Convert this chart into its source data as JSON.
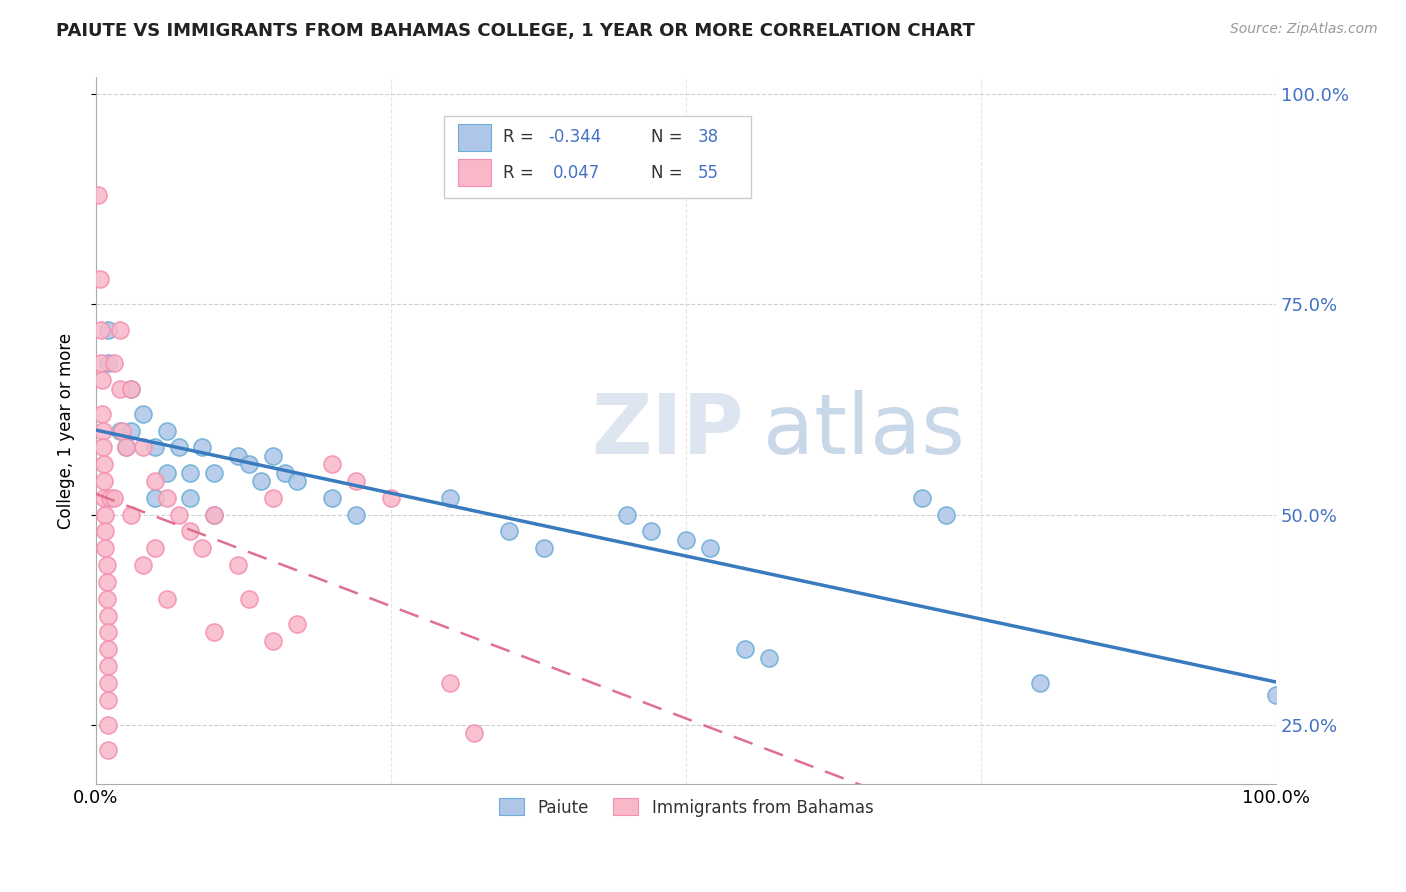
{
  "title": "PAIUTE VS IMMIGRANTS FROM BAHAMAS COLLEGE, 1 YEAR OR MORE CORRELATION CHART",
  "source": "Source: ZipAtlas.com",
  "ylabel": "College, 1 year or more",
  "legend_label_blue": "Paiute",
  "legend_label_pink": "Immigrants from Bahamas",
  "watermark_zip": "ZIP",
  "watermark_atlas": "atlas",
  "blue_color": "#aec6e8",
  "blue_edge_color": "#6baed6",
  "pink_color": "#f9b8c8",
  "pink_edge_color": "#f48fb1",
  "blue_line_color": "#3a7abf",
  "pink_line_color": "#e07090",
  "legend_r_color": "#4472c4",
  "legend_text_color": "#333333",
  "blue_r": "-0.344",
  "blue_n": "38",
  "pink_r": "0.047",
  "pink_n": "55",
  "blue_scatter": [
    [
      0.01,
      0.72
    ],
    [
      0.01,
      0.68
    ],
    [
      0.02,
      0.6
    ],
    [
      0.025,
      0.58
    ],
    [
      0.03,
      0.65
    ],
    [
      0.03,
      0.6
    ],
    [
      0.04,
      0.62
    ],
    [
      0.05,
      0.58
    ],
    [
      0.05,
      0.52
    ],
    [
      0.06,
      0.6
    ],
    [
      0.06,
      0.55
    ],
    [
      0.07,
      0.58
    ],
    [
      0.08,
      0.55
    ],
    [
      0.08,
      0.52
    ],
    [
      0.09,
      0.58
    ],
    [
      0.1,
      0.55
    ],
    [
      0.1,
      0.5
    ],
    [
      0.12,
      0.57
    ],
    [
      0.13,
      0.56
    ],
    [
      0.14,
      0.54
    ],
    [
      0.15,
      0.57
    ],
    [
      0.16,
      0.55
    ],
    [
      0.17,
      0.54
    ],
    [
      0.2,
      0.52
    ],
    [
      0.22,
      0.5
    ],
    [
      0.3,
      0.52
    ],
    [
      0.35,
      0.48
    ],
    [
      0.38,
      0.46
    ],
    [
      0.45,
      0.5
    ],
    [
      0.47,
      0.48
    ],
    [
      0.5,
      0.47
    ],
    [
      0.52,
      0.46
    ],
    [
      0.55,
      0.34
    ],
    [
      0.57,
      0.33
    ],
    [
      0.7,
      0.52
    ],
    [
      0.72,
      0.5
    ],
    [
      0.8,
      0.3
    ],
    [
      1.0,
      0.285
    ]
  ],
  "pink_scatter": [
    [
      0.002,
      0.88
    ],
    [
      0.003,
      0.78
    ],
    [
      0.004,
      0.72
    ],
    [
      0.004,
      0.68
    ],
    [
      0.005,
      0.66
    ],
    [
      0.005,
      0.62
    ],
    [
      0.006,
      0.6
    ],
    [
      0.006,
      0.58
    ],
    [
      0.007,
      0.56
    ],
    [
      0.007,
      0.54
    ],
    [
      0.007,
      0.52
    ],
    [
      0.008,
      0.5
    ],
    [
      0.008,
      0.48
    ],
    [
      0.008,
      0.46
    ],
    [
      0.009,
      0.44
    ],
    [
      0.009,
      0.42
    ],
    [
      0.009,
      0.4
    ],
    [
      0.01,
      0.38
    ],
    [
      0.01,
      0.36
    ],
    [
      0.01,
      0.34
    ],
    [
      0.01,
      0.32
    ],
    [
      0.01,
      0.3
    ],
    [
      0.01,
      0.28
    ],
    [
      0.01,
      0.25
    ],
    [
      0.01,
      0.22
    ],
    [
      0.012,
      0.52
    ],
    [
      0.015,
      0.68
    ],
    [
      0.015,
      0.52
    ],
    [
      0.02,
      0.72
    ],
    [
      0.02,
      0.65
    ],
    [
      0.022,
      0.6
    ],
    [
      0.025,
      0.58
    ],
    [
      0.03,
      0.65
    ],
    [
      0.03,
      0.5
    ],
    [
      0.04,
      0.58
    ],
    [
      0.04,
      0.44
    ],
    [
      0.05,
      0.54
    ],
    [
      0.05,
      0.46
    ],
    [
      0.06,
      0.52
    ],
    [
      0.06,
      0.4
    ],
    [
      0.07,
      0.5
    ],
    [
      0.08,
      0.48
    ],
    [
      0.09,
      0.46
    ],
    [
      0.1,
      0.5
    ],
    [
      0.1,
      0.36
    ],
    [
      0.12,
      0.44
    ],
    [
      0.13,
      0.4
    ],
    [
      0.15,
      0.52
    ],
    [
      0.15,
      0.35
    ],
    [
      0.17,
      0.37
    ],
    [
      0.2,
      0.56
    ],
    [
      0.22,
      0.54
    ],
    [
      0.25,
      0.52
    ],
    [
      0.3,
      0.3
    ],
    [
      0.32,
      0.24
    ]
  ],
  "xlim": [
    0.0,
    1.0
  ],
  "ylim": [
    0.18,
    1.02
  ],
  "yticks": [
    0.25,
    0.5,
    0.75,
    1.0
  ],
  "ytick_labels": [
    "25.0%",
    "50.0%",
    "75.0%",
    "100.0%"
  ],
  "xticks": [
    0.0,
    0.25,
    0.5,
    0.75,
    1.0
  ],
  "xtick_labels": [
    "0.0%",
    "",
    "",
    "",
    "100.0%"
  ],
  "background_color": "#ffffff",
  "grid_color": "#d0d0d0"
}
